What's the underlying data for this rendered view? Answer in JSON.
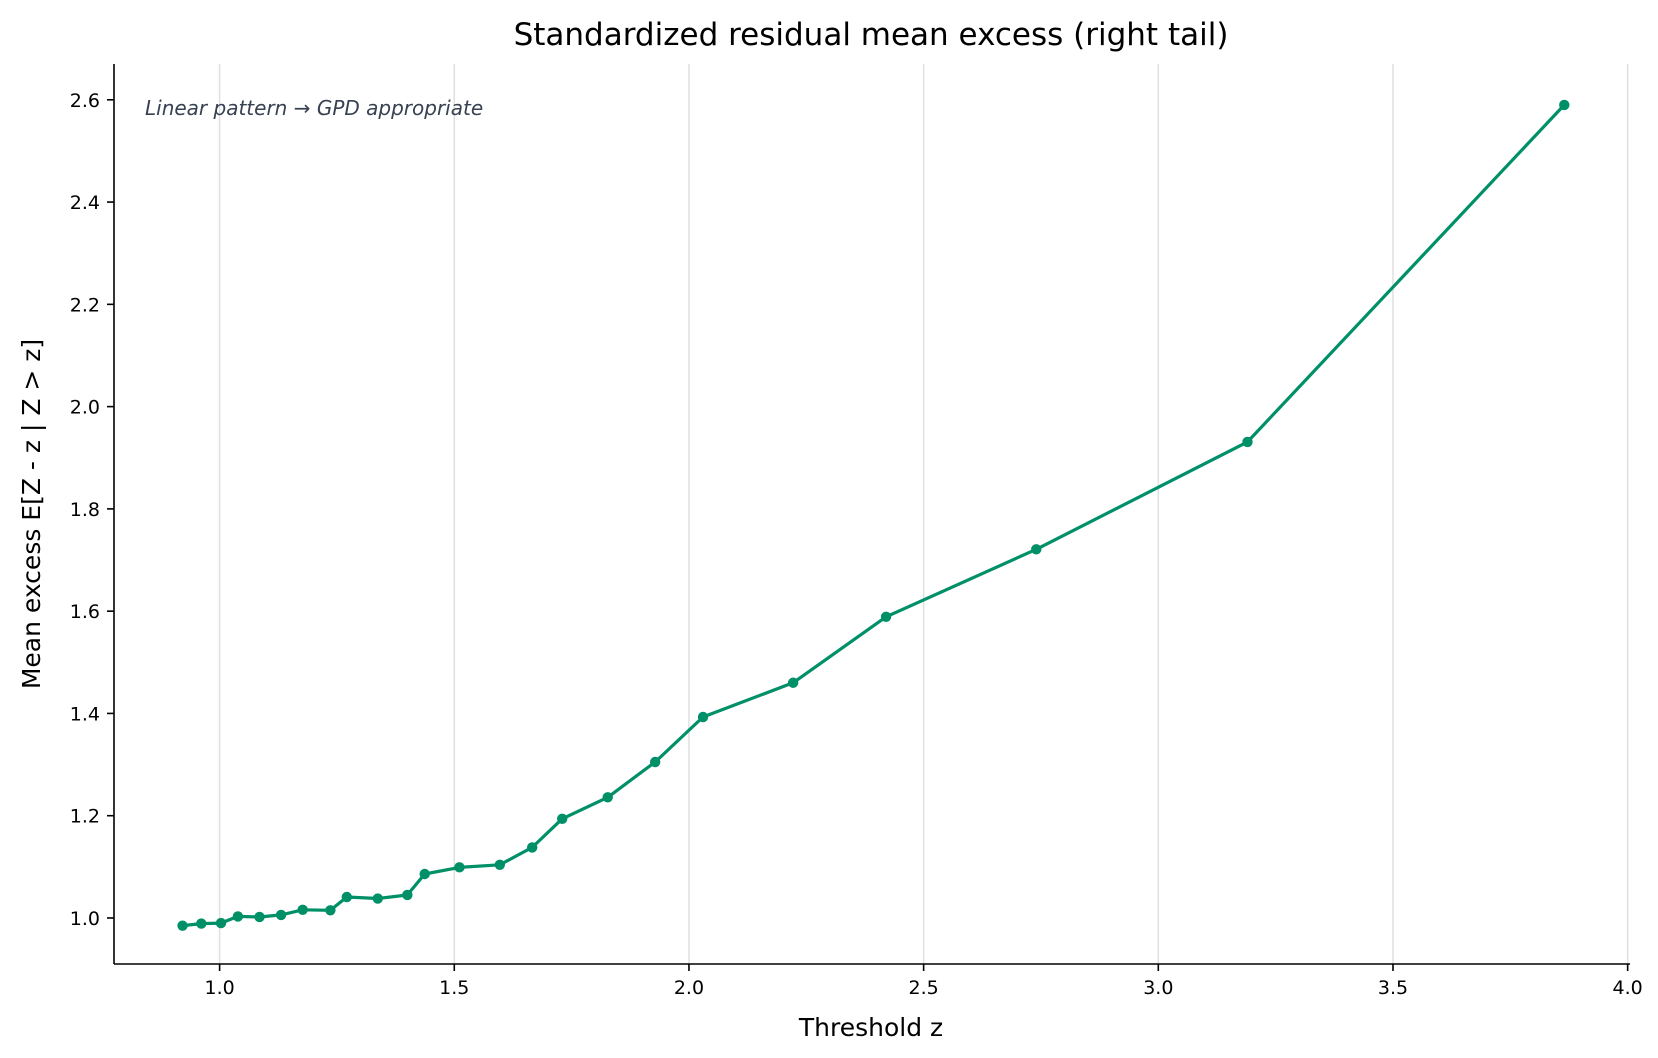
{
  "chart_data": {
    "type": "line",
    "title": "Standardized residual mean excess (right tail)",
    "xlabel": "Threshold z",
    "ylabel": "Mean excess E[Z - z | Z > z]",
    "annotation": "Linear pattern → GPD appropriate",
    "xlim": [
      0.775,
      4.005
    ],
    "ylim": [
      0.91,
      2.67
    ],
    "xticks": [
      1.0,
      1.5,
      2.0,
      2.5,
      3.0,
      3.5,
      4.0
    ],
    "xtick_labels": [
      "1.0",
      "1.5",
      "2.0",
      "2.5",
      "3.0",
      "3.5",
      "4.0"
    ],
    "yticks": [
      1.0,
      1.2,
      1.4,
      1.6,
      1.8,
      2.0,
      2.2,
      2.4,
      2.6
    ],
    "ytick_labels": [
      "1.0",
      "1.2",
      "1.4",
      "1.6",
      "1.8",
      "2.0",
      "2.2",
      "2.4",
      "2.6"
    ],
    "grid": "vertical",
    "series": [
      {
        "color": "#009068",
        "x": [
          0.921,
          0.961,
          1.003,
          1.039,
          1.085,
          1.131,
          1.177,
          1.236,
          1.271,
          1.337,
          1.4,
          1.437,
          1.511,
          1.597,
          1.666,
          1.73,
          1.827,
          1.928,
          2.03,
          2.222,
          2.42,
          2.74,
          3.19,
          3.865
        ],
        "y": [
          0.985,
          0.989,
          0.99,
          1.003,
          1.002,
          1.006,
          1.016,
          1.015,
          1.041,
          1.038,
          1.045,
          1.086,
          1.099,
          1.104,
          1.138,
          1.194,
          1.236,
          1.305,
          1.393,
          1.46,
          1.589,
          1.721,
          1.931,
          2.59
        ]
      }
    ]
  }
}
